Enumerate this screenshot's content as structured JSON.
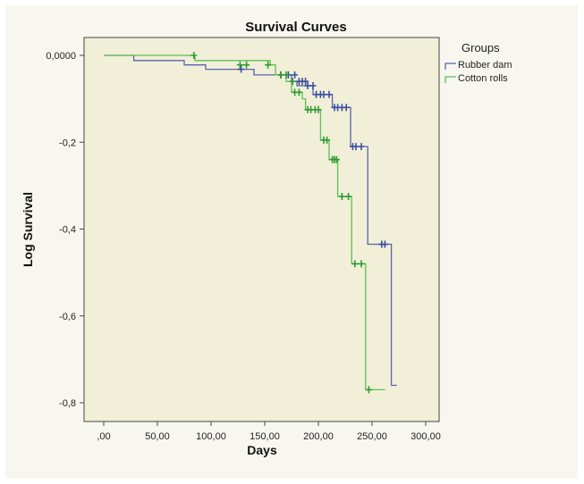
{
  "chart_data": {
    "type": "line",
    "title": "Survival Curves",
    "xlabel": "Days",
    "ylabel": "Log Survival",
    "xlim": [
      0,
      300
    ],
    "ylim": [
      -0.85,
      0.03
    ],
    "x_ticks": [
      0,
      50,
      100,
      150,
      200,
      250,
      300
    ],
    "x_tick_labels": [
      ",00",
      "50,00",
      "100,00",
      "150,00",
      "200,00",
      "250,00",
      "300,00"
    ],
    "y_ticks": [
      0,
      -0.2,
      -0.4,
      -0.6,
      -0.8
    ],
    "y_tick_labels": [
      "0,0000",
      "-0,2",
      "-0,4",
      "-0,6",
      "-0,8"
    ],
    "legend": {
      "title": "Groups",
      "position": "top-right outside"
    },
    "grid": false,
    "series": [
      {
        "name": "Rubber dam",
        "color": "#5a63b0",
        "censor_color": "#3a4fa0",
        "steps": [
          [
            0,
            0.0
          ],
          [
            28,
            -0.012
          ],
          [
            75,
            -0.022
          ],
          [
            95,
            -0.032
          ],
          [
            140,
            -0.045
          ],
          [
            175,
            -0.06
          ],
          [
            180,
            -0.07
          ],
          [
            195,
            -0.09
          ],
          [
            213,
            -0.12
          ],
          [
            230,
            -0.21
          ],
          [
            246,
            -0.435
          ],
          [
            268,
            -0.76
          ],
          [
            273,
            -0.76
          ]
        ],
        "censored": [
          [
            128,
            -0.032
          ],
          [
            165,
            -0.045
          ],
          [
            172,
            -0.045
          ],
          [
            178,
            -0.045
          ],
          [
            182,
            -0.06
          ],
          [
            185,
            -0.06
          ],
          [
            188,
            -0.06
          ],
          [
            190,
            -0.07
          ],
          [
            195,
            -0.07
          ],
          [
            198,
            -0.09
          ],
          [
            202,
            -0.09
          ],
          [
            205,
            -0.09
          ],
          [
            210,
            -0.09
          ],
          [
            215,
            -0.12
          ],
          [
            218,
            -0.12
          ],
          [
            222,
            -0.12
          ],
          [
            226,
            -0.12
          ],
          [
            232,
            -0.21
          ],
          [
            235,
            -0.21
          ],
          [
            240,
            -0.21
          ],
          [
            259,
            -0.435
          ],
          [
            262,
            -0.435
          ]
        ]
      },
      {
        "name": "Cotton rolls",
        "color": "#5dbf55",
        "censor_color": "#2e9a33",
        "steps": [
          [
            0,
            0.0
          ],
          [
            85,
            -0.012
          ],
          [
            155,
            -0.022
          ],
          [
            160,
            -0.045
          ],
          [
            170,
            -0.06
          ],
          [
            175,
            -0.085
          ],
          [
            185,
            -0.1
          ],
          [
            188,
            -0.125
          ],
          [
            202,
            -0.195
          ],
          [
            210,
            -0.24
          ],
          [
            218,
            -0.325
          ],
          [
            231,
            -0.48
          ],
          [
            244,
            -0.77
          ],
          [
            262,
            -0.77
          ]
        ],
        "censored": [
          [
            84,
            0.0
          ],
          [
            127,
            -0.022
          ],
          [
            133,
            -0.022
          ],
          [
            153,
            -0.022
          ],
          [
            165,
            -0.045
          ],
          [
            170,
            -0.045
          ],
          [
            176,
            -0.06
          ],
          [
            178,
            -0.085
          ],
          [
            182,
            -0.085
          ],
          [
            190,
            -0.125
          ],
          [
            193,
            -0.125
          ],
          [
            197,
            -0.125
          ],
          [
            200,
            -0.125
          ],
          [
            205,
            -0.195
          ],
          [
            208,
            -0.195
          ],
          [
            213,
            -0.24
          ],
          [
            215,
            -0.24
          ],
          [
            217,
            -0.24
          ],
          [
            222,
            -0.325
          ],
          [
            228,
            -0.325
          ],
          [
            234,
            -0.48
          ],
          [
            240,
            -0.48
          ],
          [
            247,
            -0.77
          ]
        ]
      }
    ]
  }
}
